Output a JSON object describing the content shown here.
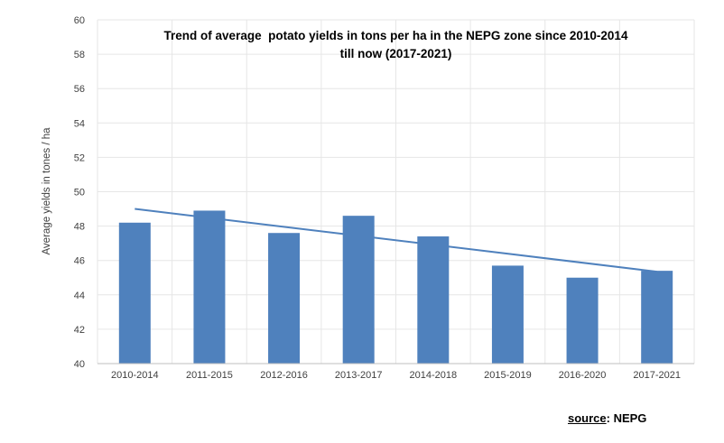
{
  "chart_data": {
    "type": "bar",
    "title_line1": "Trend of average  potato yields in tons per ha in the NEPG zone since 2010-2014",
    "title_line2": "till now (2017-2021)",
    "ylabel": "Average yields in tones / ha",
    "xlabel": "",
    "categories": [
      "2010-2014",
      "2011-2015",
      "2012-2016",
      "2013-2017",
      "2014-2018",
      "2015-2019",
      "2016-2020",
      "2017-2021"
    ],
    "series": [
      {
        "name": "Average yields",
        "values": [
          48.2,
          48.9,
          47.6,
          48.6,
          47.4,
          45.7,
          45.0,
          45.4
        ]
      }
    ],
    "trendline": {
      "start_value": 49.0,
      "end_value": 45.35
    },
    "ylim": [
      40,
      60
    ],
    "ytick_step": 2,
    "grid": true,
    "legend": "none",
    "colors": {
      "bar": "#4F81BD",
      "trendline": "#4F81BD",
      "gridline": "#E6E6E6",
      "axis_line": "#BFBFBF",
      "tick_text": "#3f3f3f",
      "title_text": "#000000"
    }
  },
  "footer": {
    "source_label": "source",
    "source_rest": ": NEPG"
  }
}
